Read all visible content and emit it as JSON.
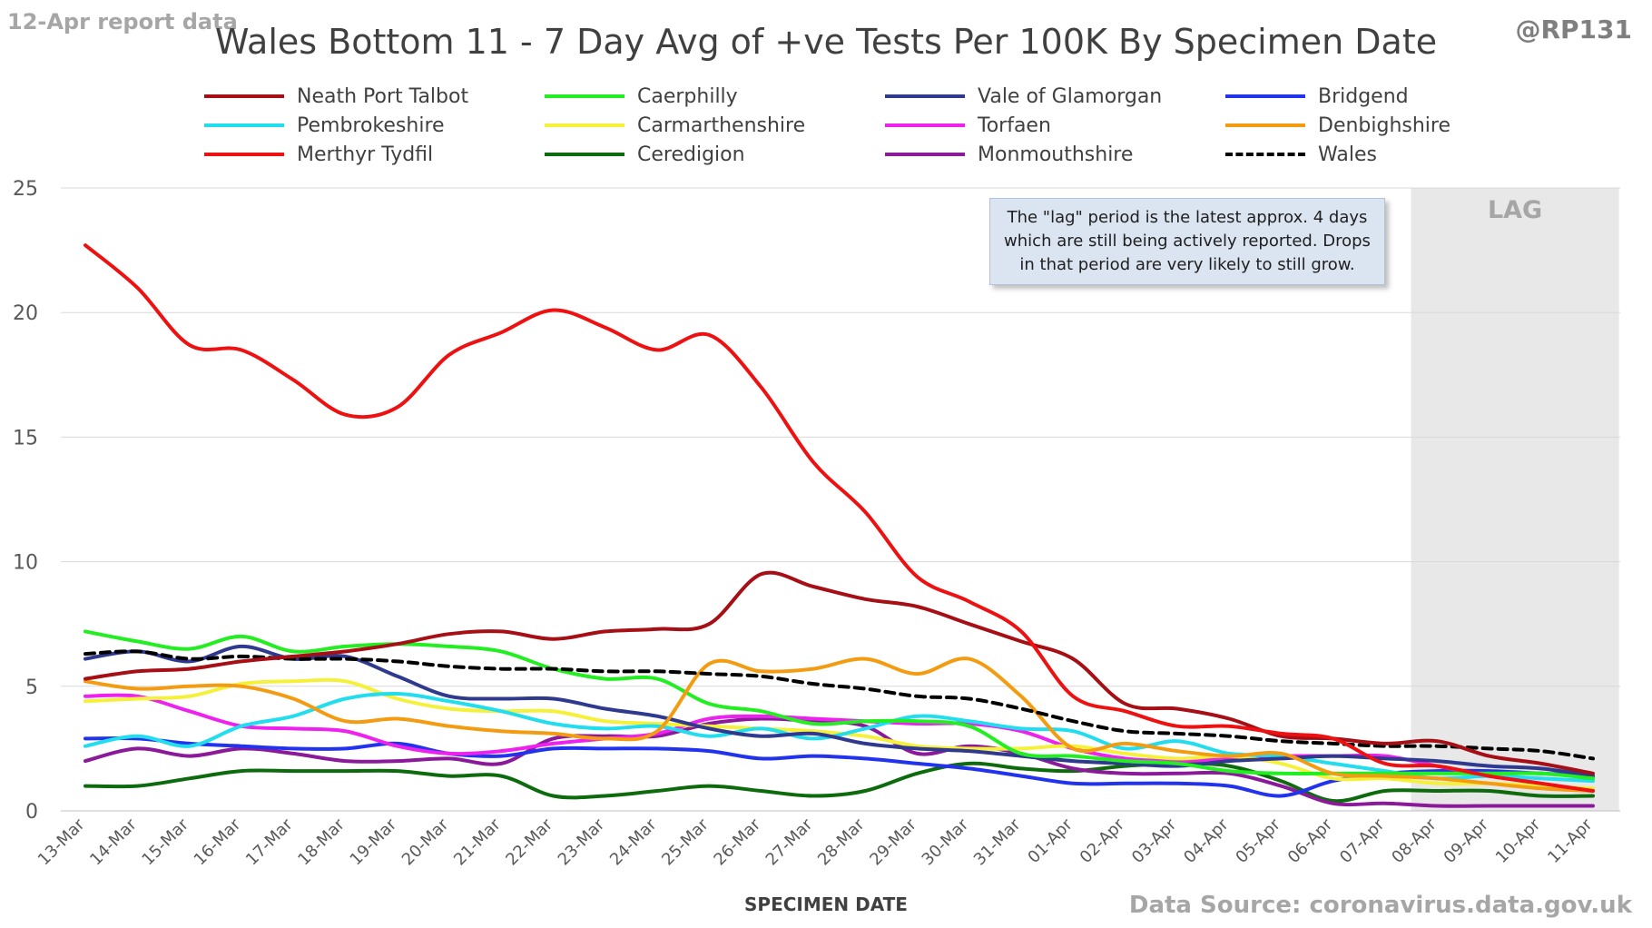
{
  "header": {
    "report_tag": "12-Apr report data",
    "handle": "@RP131",
    "source": "Data Source: coronavirus.data.gov.uk"
  },
  "note": "The \"lag\" period is the latest approx. 4 days which are still being actively reported.  Drops in that period are very likely to still grow.",
  "chart_data": {
    "type": "line",
    "title": "Wales Bottom 11 - 7 Day Avg of +ve Tests Per 100K By Specimen Date",
    "xlabel": "SPECIMEN DATE",
    "ylabel": "",
    "ylim": [
      0,
      25
    ],
    "yticks": [
      0,
      5,
      10,
      15,
      20,
      25
    ],
    "grid": true,
    "legend_position": "top",
    "lag_label": "LAG",
    "lag_start": "08-Apr",
    "lag_end": "11-Apr",
    "categories": [
      "13-Mar",
      "14-Mar",
      "15-Mar",
      "16-Mar",
      "17-Mar",
      "18-Mar",
      "19-Mar",
      "20-Mar",
      "21-Mar",
      "22-Mar",
      "23-Mar",
      "24-Mar",
      "25-Mar",
      "26-Mar",
      "27-Mar",
      "28-Mar",
      "29-Mar",
      "30-Mar",
      "31-Mar",
      "01-Apr",
      "02-Apr",
      "03-Apr",
      "04-Apr",
      "05-Apr",
      "06-Apr",
      "07-Apr",
      "08-Apr",
      "09-Apr",
      "10-Apr",
      "11-Apr"
    ],
    "series": [
      {
        "name": "Neath Port Talbot",
        "color": "#a50f15",
        "dash": false,
        "values": [
          5.3,
          5.6,
          5.7,
          6.0,
          6.2,
          6.4,
          6.7,
          7.1,
          7.2,
          6.9,
          7.2,
          7.3,
          7.5,
          9.5,
          9.0,
          8.5,
          8.2,
          7.5,
          6.8,
          6.1,
          4.3,
          4.1,
          3.7,
          3.0,
          2.9,
          2.7,
          2.8,
          2.2,
          1.9,
          1.5
        ]
      },
      {
        "name": "Caerphilly",
        "color": "#22ee22",
        "dash": false,
        "values": [
          7.2,
          6.8,
          6.5,
          7.0,
          6.4,
          6.6,
          6.7,
          6.6,
          6.4,
          5.7,
          5.3,
          5.3,
          4.3,
          4.0,
          3.5,
          3.6,
          3.6,
          3.4,
          2.3,
          2.2,
          2.0,
          1.9,
          1.6,
          1.5,
          1.5,
          1.5,
          1.5,
          1.5,
          1.5,
          1.3
        ]
      },
      {
        "name": "Vale of Glamorgan",
        "color": "#2f3a8f",
        "dash": false,
        "values": [
          6.1,
          6.4,
          6.0,
          6.6,
          6.1,
          6.2,
          5.4,
          4.6,
          4.5,
          4.5,
          4.1,
          3.8,
          3.3,
          3.0,
          3.1,
          2.7,
          2.5,
          2.4,
          2.2,
          2.0,
          1.9,
          1.8,
          2.0,
          2.1,
          2.2,
          2.1,
          2.0,
          1.8,
          1.7,
          1.4
        ]
      },
      {
        "name": "Bridgend",
        "color": "#2233ee",
        "dash": false,
        "values": [
          2.9,
          2.9,
          2.7,
          2.6,
          2.5,
          2.5,
          2.7,
          2.3,
          2.2,
          2.5,
          2.5,
          2.5,
          2.4,
          2.1,
          2.2,
          2.1,
          1.9,
          1.7,
          1.4,
          1.1,
          1.1,
          1.1,
          1.0,
          0.6,
          1.2,
          1.5,
          1.6,
          1.6,
          1.5,
          1.4
        ]
      },
      {
        "name": "Pembrokeshire",
        "color": "#22ddee",
        "dash": false,
        "values": [
          2.6,
          3.0,
          2.6,
          3.4,
          3.8,
          4.5,
          4.7,
          4.4,
          4.0,
          3.5,
          3.3,
          3.4,
          3.0,
          3.3,
          2.9,
          3.3,
          3.8,
          3.6,
          3.3,
          3.2,
          2.5,
          2.8,
          2.3,
          2.2,
          1.9,
          1.6,
          1.3,
          1.4,
          1.3,
          1.2
        ]
      },
      {
        "name": "Carmarthenshire",
        "color": "#f5f03a",
        "dash": false,
        "values": [
          4.4,
          4.5,
          4.6,
          5.1,
          5.2,
          5.2,
          4.5,
          4.1,
          4.0,
          4.0,
          3.6,
          3.5,
          3.4,
          3.3,
          3.2,
          3.0,
          2.6,
          2.5,
          2.5,
          2.6,
          2.3,
          2.1,
          2.2,
          1.9,
          1.3,
          1.3,
          1.1,
          1.1,
          1.0,
          0.9
        ]
      },
      {
        "name": "Torfaen",
        "color": "#ee22ee",
        "dash": false,
        "values": [
          4.6,
          4.6,
          4.0,
          3.4,
          3.3,
          3.2,
          2.6,
          2.3,
          2.4,
          2.7,
          2.9,
          3.1,
          3.7,
          3.8,
          3.7,
          3.6,
          3.5,
          3.5,
          3.2,
          2.5,
          2.1,
          2.0,
          2.1,
          2.2,
          2.2,
          2.2,
          1.8,
          1.4,
          1.1,
          0.8
        ]
      },
      {
        "name": "Denbighshire",
        "color": "#f39c12",
        "dash": false,
        "values": [
          5.2,
          4.9,
          5.0,
          5.0,
          4.5,
          3.6,
          3.7,
          3.4,
          3.2,
          3.1,
          2.9,
          3.2,
          5.9,
          5.6,
          5.7,
          6.1,
          5.5,
          6.1,
          4.6,
          2.5,
          2.7,
          2.4,
          2.2,
          2.3,
          1.5,
          1.4,
          1.3,
          1.1,
          0.9,
          0.8
        ]
      },
      {
        "name": "Merthyr Tydfil",
        "color": "#ee1111",
        "dash": false,
        "values": [
          22.7,
          21.0,
          18.7,
          18.5,
          17.3,
          15.9,
          16.2,
          18.3,
          19.2,
          20.1,
          19.4,
          18.5,
          19.1,
          17.0,
          14.0,
          12.0,
          9.4,
          8.4,
          7.2,
          4.6,
          4.0,
          3.4,
          3.4,
          3.1,
          2.9,
          1.9,
          1.8,
          1.4,
          1.1,
          0.8
        ]
      },
      {
        "name": "Ceredigion",
        "color": "#0d6b0d",
        "dash": false,
        "values": [
          1.0,
          1.0,
          1.3,
          1.6,
          1.6,
          1.6,
          1.6,
          1.4,
          1.4,
          0.6,
          0.6,
          0.8,
          1.0,
          0.8,
          0.6,
          0.8,
          1.5,
          1.9,
          1.7,
          1.6,
          1.8,
          1.9,
          1.8,
          1.2,
          0.4,
          0.8,
          0.8,
          0.8,
          0.6,
          0.6
        ]
      },
      {
        "name": "Monmouthshire",
        "color": "#8b1a9b",
        "dash": false,
        "values": [
          2.0,
          2.5,
          2.2,
          2.5,
          2.3,
          2.0,
          2.0,
          2.1,
          1.9,
          2.9,
          3.0,
          3.0,
          3.5,
          3.7,
          3.6,
          3.4,
          2.3,
          2.6,
          2.3,
          1.7,
          1.5,
          1.5,
          1.5,
          1.0,
          0.3,
          0.3,
          0.2,
          0.2,
          0.2,
          0.2
        ]
      },
      {
        "name": "Wales",
        "color": "#000000",
        "dash": true,
        "values": [
          6.3,
          6.4,
          6.1,
          6.2,
          6.1,
          6.1,
          6.0,
          5.8,
          5.7,
          5.7,
          5.6,
          5.6,
          5.5,
          5.4,
          5.1,
          4.9,
          4.6,
          4.5,
          4.1,
          3.6,
          3.2,
          3.1,
          3.0,
          2.8,
          2.7,
          2.6,
          2.6,
          2.5,
          2.4,
          2.1
        ]
      }
    ]
  }
}
